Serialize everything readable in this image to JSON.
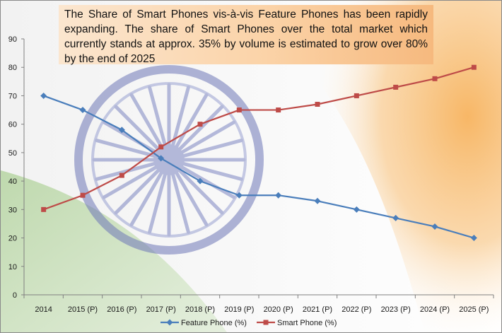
{
  "annotation": "The Share of Smart Phones vis-à-vis Feature Phones has been rapidly expanding. The share of Smart Phones over the total market which currently stands at approx. 35% by volume is estimated to grow over 80% by the end of 2025",
  "chart_data": {
    "type": "line",
    "title": "",
    "xlabel": "",
    "ylabel": "",
    "categories": [
      "2014",
      "2015 (P)",
      "2016 (P)",
      "2017 (P)",
      "2018 (P)",
      "2019 (P)",
      "2020 (P)",
      "2021 (P)",
      "2022 (P)",
      "2023 (P)",
      "2024 (P)",
      "2025 (P)"
    ],
    "ylim": [
      0,
      90
    ],
    "yticks": [
      0,
      10,
      20,
      30,
      40,
      50,
      60,
      70,
      80,
      90
    ],
    "grid": false,
    "legend_position": "bottom",
    "series": [
      {
        "name": "Feature Phone (%)",
        "color": "#4a7ebb",
        "marker": "diamond",
        "values": [
          70,
          65,
          58,
          48,
          40,
          35,
          35,
          33,
          30,
          27,
          24,
          20
        ]
      },
      {
        "name": "Smart Phone (%)",
        "color": "#be4b48",
        "marker": "square",
        "values": [
          30,
          35,
          42,
          52,
          60,
          65,
          65,
          67,
          70,
          73,
          76,
          80
        ]
      }
    ]
  }
}
